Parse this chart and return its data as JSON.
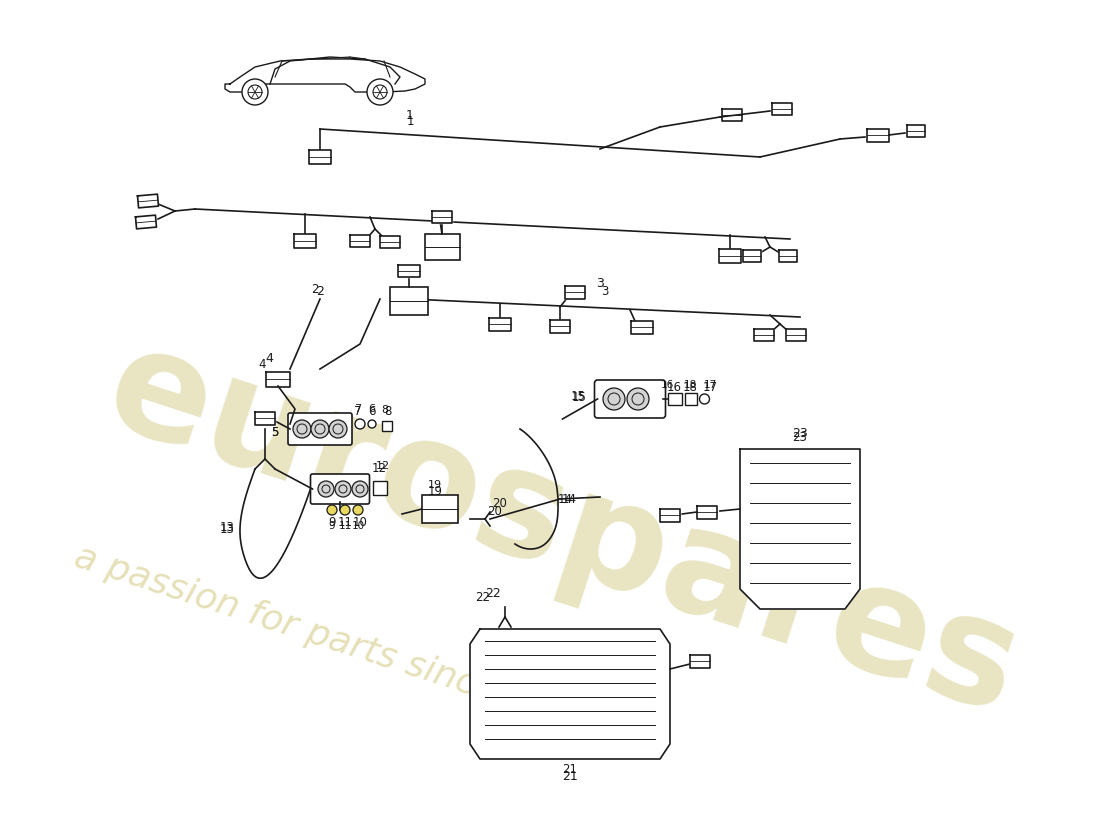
{
  "bg_color": "#ffffff",
  "watermark_text1": "eurospares",
  "watermark_text2": "a passion for parts since 1985",
  "watermark_color": "#d4cc88",
  "line_color": "#1a1a1a",
  "lw": 1.2
}
